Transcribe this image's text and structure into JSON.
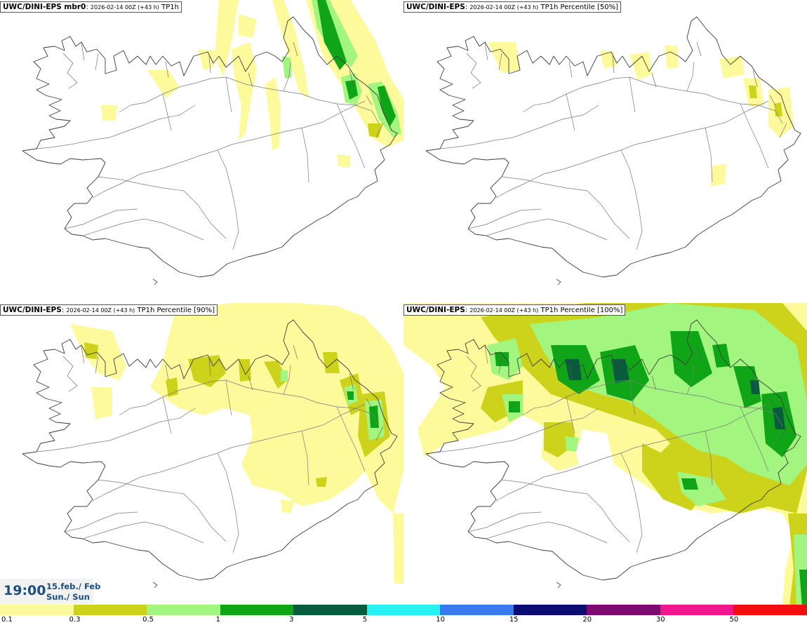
{
  "panels": [
    {
      "model": "UWC/DINI-EPS mbr0",
      "meta": "2026-02-14 00Z (+43 h)",
      "param": "TP1h"
    },
    {
      "model": "UWC/DINI-EPS",
      "meta": "2026-02-14 00Z (+43 h)",
      "param": "TP1h Percentile [50%]"
    },
    {
      "model": "UWC/DINI-EPS",
      "meta": "2026-02-14 00Z (+43 h)",
      "param": "TP1h Percentile [90%]"
    },
    {
      "model": "UWC/DINI-EPS",
      "meta": "2026-02-14 00Z (+43 h)",
      "param": "TP1h Percentile [100%]"
    }
  ],
  "time": {
    "clock": "19:00",
    "date_line1": "15.feb./ Feb",
    "date_line2": "Sun./ Sun"
  },
  "legend": {
    "labels": [
      "0.1",
      "0.3",
      "0.5",
      "1",
      "3",
      "5",
      "10",
      "15",
      "20",
      "30",
      "50"
    ],
    "colors": [
      "#fdfa9c",
      "#cdd21a",
      "#a2f57f",
      "#10a516",
      "#075c3e",
      "#27f2ef",
      "#3a78f0",
      "#0b0d73",
      "#7d0a70",
      "#f0168c",
      "#f40d10"
    ]
  },
  "colors": {
    "coast": "#3c3c3c",
    "roads": "#7a7a7a",
    "precip_light": "#fdfa9c",
    "precip_moderate": "#cdd21a",
    "precip_light_green": "#a2f57f",
    "precip_green": "#10a516",
    "precip_dark_green": "#075c3e",
    "time_text": "#1a4f7e"
  }
}
